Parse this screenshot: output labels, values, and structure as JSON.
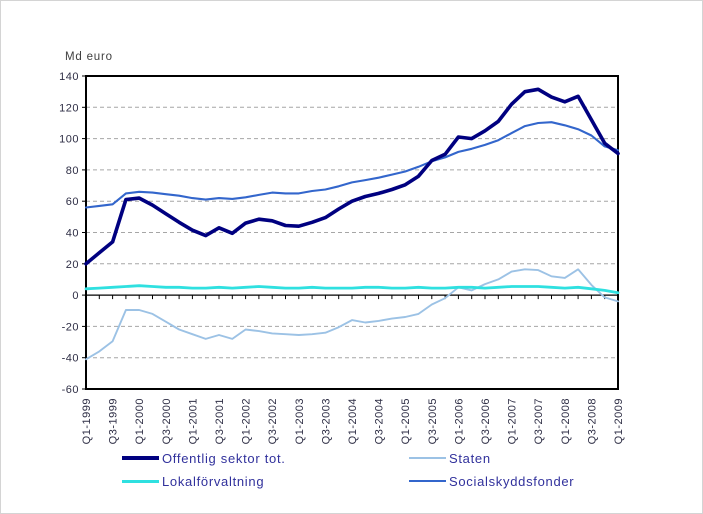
{
  "figure": {
    "y_axis_title": "Md euro",
    "background": "#ffffff",
    "plot_border_color": "#000000",
    "gridline_color": "#a6a6a6",
    "gridline_style": "dashed",
    "tick_label_color": "#2e2e45",
    "legend_text_color": "#31319c"
  },
  "chart_data": {
    "type": "line",
    "title": "",
    "ylabel": "Md euro",
    "xlabel": "",
    "ylim": [
      -60,
      140
    ],
    "y_tick_step": 20,
    "grid": "horizontal-dashed",
    "legend_position": "bottom-two-columns",
    "x_labels_shown_every": 2,
    "x": [
      "Q1-1999",
      "Q2-1999",
      "Q3-1999",
      "Q4-1999",
      "Q1-2000",
      "Q2-2000",
      "Q3-2000",
      "Q4-2000",
      "Q1-2001",
      "Q2-2001",
      "Q3-2001",
      "Q4-2001",
      "Q1-2002",
      "Q2-2002",
      "Q3-2002",
      "Q4-2002",
      "Q1-2003",
      "Q2-2003",
      "Q3-2003",
      "Q4-2003",
      "Q1-2004",
      "Q2-2004",
      "Q3-2004",
      "Q4-2004",
      "Q1-2005",
      "Q2-2005",
      "Q3-2005",
      "Q4-2005",
      "Q1-2006",
      "Q2-2006",
      "Q3-2006",
      "Q4-2006",
      "Q1-2007",
      "Q2-2007",
      "Q3-2007",
      "Q4-2007",
      "Q1-2008",
      "Q2-2008",
      "Q3-2008",
      "Q4-2008",
      "Q1-2009"
    ],
    "series": [
      {
        "name": "Offentlig sektor tot.",
        "color": "#000080",
        "stroke_width": 3.6,
        "values": [
          20,
          27,
          34,
          61,
          62,
          57.5,
          52,
          46.5,
          41.5,
          38,
          43,
          39.5,
          46,
          48.5,
          47.5,
          44.5,
          44,
          46.5,
          49.5,
          55,
          60,
          63,
          65,
          67.5,
          70.5,
          76,
          86,
          90,
          101,
          100,
          105,
          111,
          122,
          130,
          131.5,
          126.5,
          123.5,
          127,
          112,
          97,
          90.5
        ]
      },
      {
        "name": "Staten",
        "color": "#9cc2e5",
        "stroke_width": 1.9,
        "values": [
          -41,
          -36,
          -29.5,
          -9.5,
          -9.5,
          -12,
          -17,
          -22,
          -25,
          -28,
          -25.5,
          -28,
          -22,
          -23,
          -24.5,
          -25,
          -25.5,
          -25,
          -24,
          -20.5,
          -16,
          -17.5,
          -16.5,
          -15,
          -14,
          -12,
          -6,
          -2,
          5,
          3,
          7,
          10,
          15,
          16.5,
          16,
          12,
          11,
          16.5,
          6.5,
          -1.5,
          -4
        ]
      },
      {
        "name": "Lokalförvaltning",
        "color": "#2fe0e0",
        "stroke_width": 2.8,
        "values": [
          4,
          4.5,
          5,
          5.5,
          6,
          5.5,
          5,
          5,
          4.5,
          4.5,
          5,
          4.5,
          5,
          5.5,
          5,
          4.5,
          4.5,
          5,
          4.5,
          4.5,
          4.5,
          5,
          5,
          4.5,
          4.5,
          5,
          4.5,
          4.5,
          5,
          5,
          4.5,
          5,
          5.5,
          5.5,
          5.5,
          5,
          4.5,
          5,
          4,
          3,
          1.5
        ]
      },
      {
        "name": "Socialskyddsfonder",
        "color": "#3366cc",
        "stroke_width": 2.1,
        "values": [
          56,
          57,
          58,
          65,
          66,
          65.5,
          64.5,
          63.5,
          62,
          61,
          62,
          61.5,
          62.5,
          64,
          65.5,
          65,
          65,
          66.5,
          67.5,
          69.5,
          72,
          73.5,
          75,
          77,
          79,
          82,
          85.5,
          88,
          91.5,
          93.5,
          96,
          99,
          103.5,
          108,
          110,
          110.5,
          108.5,
          106,
          102,
          95,
          92.5
        ]
      }
    ],
    "legend_swatch_heights": [
      4,
      2,
      3,
      2
    ]
  }
}
